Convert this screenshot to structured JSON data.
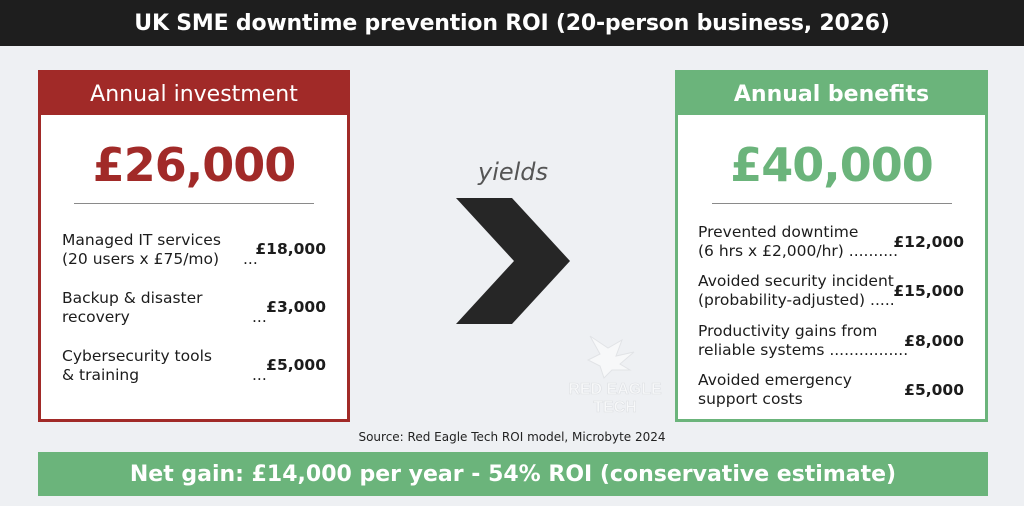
{
  "title": "UK SME downtime prevention ROI (20-person business, 2026)",
  "investment": {
    "heading": "Annual investment",
    "total": "£26,000",
    "items": [
      {
        "label1": "Managed IT services",
        "label2": "(20 users x £75/mo)",
        "dots": "...",
        "amount": "£18,000"
      },
      {
        "label1": "Backup & disaster",
        "label2": "recovery",
        "dots": "...",
        "amount": "£3,000"
      },
      {
        "label1": "Cybersecurity tools",
        "label2": "& training",
        "dots": "...",
        "amount": "£5,000"
      }
    ]
  },
  "connector": {
    "text": "yields",
    "icon": "chevron-right-icon"
  },
  "benefits": {
    "heading": "Annual benefits",
    "total": "£40,000",
    "items": [
      {
        "label1": "Prevented downtime",
        "label2": "(6 hrs x £2,000/hr) ..........",
        "amount": "£12,000"
      },
      {
        "label1": "Avoided security incident",
        "label2": "(probability-adjusted) .....",
        "amount": "£15,000"
      },
      {
        "label1": "Productivity gains from",
        "label2": "reliable systems ................",
        "amount": "£8,000"
      },
      {
        "label1": "Avoided emergency",
        "label2": "support costs",
        "amount": "£5,000"
      }
    ]
  },
  "watermark": {
    "line1": "RED EAGLE",
    "line2": "TECH",
    "icon": "eagle-logo-icon"
  },
  "source": "Source: Red Eagle Tech ROI model, Microbyte 2024",
  "net_gain": "Net gain: £14,000 per year - 54% ROI (conservative estimate)",
  "colors": {
    "investment": "#a12a28",
    "benefits": "#6bb47b",
    "title_bar": "#1e1e1e",
    "chevron": "#262626"
  }
}
